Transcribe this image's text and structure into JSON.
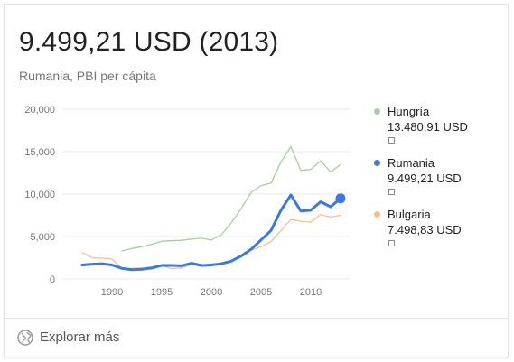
{
  "header": {
    "headline": "9.499,21 USD (2013)",
    "subtitle": "Rumania, PBI per cápita"
  },
  "chart_data": {
    "type": "line",
    "title": "",
    "xlabel": "",
    "ylabel": "",
    "xlim": [
      1985,
      2014
    ],
    "ylim": [
      0,
      20000
    ],
    "grid": true,
    "x_ticks": [
      1990,
      1995,
      2000,
      2005,
      2010
    ],
    "x_tick_labels": [
      "1990",
      "1995",
      "2000",
      "2005",
      "2010"
    ],
    "y_ticks": [
      0,
      5000,
      10000,
      15000,
      20000
    ],
    "y_tick_labels": [
      "0",
      "5,000",
      "10,000",
      "15,000",
      "20,000"
    ],
    "legend_position": "right",
    "series": [
      {
        "name": "Hungría",
        "value_label": "13.480,91 USD",
        "color": "#a8cf9e",
        "highlighted": false,
        "x": [
          1991,
          1992,
          1993,
          1994,
          1995,
          1996,
          1997,
          1998,
          1999,
          2000,
          2001,
          2002,
          2003,
          2004,
          2005,
          2006,
          2007,
          2008,
          2009,
          2010,
          2011,
          2012,
          2013
        ],
        "values": [
          3300,
          3600,
          3800,
          4100,
          4450,
          4500,
          4550,
          4700,
          4800,
          4600,
          5200,
          6600,
          8300,
          10200,
          11000,
          11300,
          13800,
          15600,
          12800,
          12900,
          13900,
          12600,
          13480.91
        ]
      },
      {
        "name": "Rumania",
        "value_label": "9.499,21 USD",
        "color": "#3b78e7",
        "highlighted": true,
        "x": [
          1987,
          1988,
          1989,
          1990,
          1991,
          1992,
          1993,
          1994,
          1995,
          1996,
          1997,
          1998,
          1999,
          2000,
          2001,
          2002,
          2003,
          2004,
          2005,
          2006,
          2007,
          2008,
          2009,
          2010,
          2011,
          2012,
          2013
        ],
        "values": [
          1650,
          1750,
          1800,
          1650,
          1250,
          1100,
          1150,
          1300,
          1600,
          1600,
          1550,
          1850,
          1600,
          1650,
          1800,
          2100,
          2700,
          3500,
          4600,
          5700,
          8100,
          9900,
          8000,
          8100,
          9100,
          8500,
          9499.21
        ]
      },
      {
        "name": "Bulgaria",
        "value_label": "7.498,83 USD",
        "color": "#f5c089",
        "highlighted": false,
        "x": [
          1987,
          1988,
          1989,
          1990,
          1991,
          1992,
          1993,
          1994,
          1995,
          1996,
          1997,
          1998,
          1999,
          2000,
          2001,
          2002,
          2003,
          2004,
          2005,
          2006,
          2007,
          2008,
          2009,
          2010,
          2011,
          2012,
          2013
        ],
        "values": [
          3100,
          2500,
          2450,
          2350,
          1200,
          1250,
          1300,
          1150,
          1600,
          1200,
          1300,
          1700,
          1650,
          1600,
          1800,
          2100,
          2700,
          3400,
          3800,
          4400,
          5700,
          7000,
          6800,
          6700,
          7600,
          7300,
          7498.83
        ]
      }
    ]
  },
  "footer": {
    "explore_label": "Explorar más",
    "icon": "globe-icon"
  }
}
